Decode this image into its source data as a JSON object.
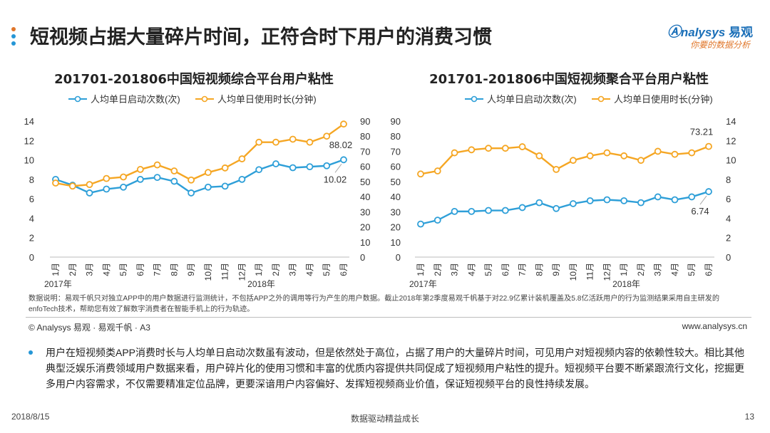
{
  "page": {
    "title": "短视频占据大量碎片时间，正符合时下用户的消费习惯",
    "dot_colors": [
      "#e0762a",
      "#2596d6",
      "#2596d6"
    ]
  },
  "logo": {
    "brand_en": "nalysys",
    "brand_cn": "易观",
    "tagline": "你要的数据分析",
    "color": "#1a6fb8",
    "tagline_color": "#e0762a"
  },
  "chart_data": [
    {
      "type": "line",
      "title": "201701-201806中国短视频综合平台用户粘性",
      "categories": [
        "1月",
        "2月",
        "3月",
        "4月",
        "5月",
        "6月",
        "7月",
        "8月",
        "9月",
        "10月",
        "11月",
        "12月",
        "1月",
        "2月",
        "3月",
        "4月",
        "5月",
        "6月"
      ],
      "year_labels": [
        {
          "label": "2017年",
          "index": 0
        },
        {
          "label": "2018年",
          "index": 12
        }
      ],
      "left_axis": {
        "ticks": [
          "0",
          "2",
          "4",
          "6",
          "8",
          "10",
          "12",
          "14"
        ],
        "min": 0,
        "max": 14
      },
      "right_axis": {
        "ticks": [
          "0",
          "10",
          "20",
          "30",
          "40",
          "50",
          "60",
          "70",
          "80",
          "90"
        ],
        "min": 0,
        "max": 90
      },
      "series": [
        {
          "name": "人均单日启动次数(次)",
          "axis": "left",
          "color": "#2e9fd8",
          "values": [
            8.0,
            7.4,
            6.6,
            7.0,
            7.2,
            8.0,
            8.2,
            7.8,
            6.6,
            7.2,
            7.3,
            8.0,
            9.0,
            9.6,
            9.2,
            9.3,
            9.4,
            10.02
          ],
          "end_label": "10.02"
        },
        {
          "name": "人均单日使用时长(分钟)",
          "axis": "right",
          "color": "#f5a623",
          "values": [
            49,
            47,
            48,
            52,
            53,
            58,
            61,
            57,
            51,
            56,
            59,
            65,
            76,
            76,
            78,
            76,
            80,
            88.02
          ],
          "end_label": "88.02"
        }
      ]
    },
    {
      "type": "line",
      "title": "201701-201806中国短视频聚合平台用户粘性",
      "categories": [
        "1月",
        "2月",
        "3月",
        "4月",
        "5月",
        "6月",
        "7月",
        "8月",
        "9月",
        "10月",
        "11月",
        "12月",
        "1月",
        "2月",
        "3月",
        "4月",
        "5月",
        "6月"
      ],
      "year_labels": [
        {
          "label": "2017年",
          "index": 0
        },
        {
          "label": "2018年",
          "index": 12
        }
      ],
      "left_axis": {
        "ticks": [
          "0",
          "10",
          "20",
          "30",
          "40",
          "50",
          "60",
          "70",
          "80",
          "90"
        ],
        "min": 0,
        "max": 90
      },
      "right_axis": {
        "ticks": [
          "0",
          "2",
          "4",
          "6",
          "8",
          "10",
          "12",
          "14"
        ],
        "min": 0,
        "max": 14
      },
      "series": [
        {
          "name": "人均单日启动次数(次)",
          "axis": "right",
          "color": "#2e9fd8",
          "values": [
            3.4,
            3.8,
            4.7,
            4.7,
            4.8,
            4.8,
            5.1,
            5.6,
            5.0,
            5.5,
            5.8,
            5.9,
            5.8,
            5.6,
            6.2,
            5.9,
            6.2,
            6.74
          ],
          "end_label": "6.74"
        },
        {
          "name": "人均单日使用时长(分钟)",
          "axis": "left",
          "color": "#f5a623",
          "values": [
            55,
            57,
            69,
            71,
            72,
            72,
            73,
            67,
            58,
            64,
            67,
            69,
            67,
            64,
            70,
            68,
            69,
            73.21
          ],
          "end_label": "73.21"
        }
      ]
    }
  ],
  "note": "数据说明：易观千帆只对独立APP中的用户数据进行监测统计，不包括APP之外的调用等行为产生的用户数据。截止2018年第2季度易观千帆基于对22.9亿累计装机覆盖及5.8亿活跃用户的行为监测结果采用自主研发的enfoTech技术，帮助您有效了解数字消费者在智能手机上的行为轨迹。",
  "footer": {
    "left": "© Analysys 易观 · 易观千帆 · A3",
    "right": "www.analysys.cn"
  },
  "paragraph": "用户在短视频类APP消费时长与人均单日启动次数虽有波动，但是依然处于高位，占据了用户的大量碎片时间，可见用户对短视频内容的依赖性较大。相比其他典型泛娱乐消费领域用户数据来看，用户碎片化的使用习惯和丰富的优质内容提供共同促成了短视频用户粘性的提升。短视频平台要不断紧跟流行文化，挖掘更多用户内容需求，不仅需要精准定位品牌，更要深谙用户内容偏好、发挥短视频商业价值，保证短视频平台的良性持续发展。",
  "bottom": {
    "date": "2018/8/15",
    "slogan": "数据驱动精益成长",
    "page_number": "13"
  }
}
